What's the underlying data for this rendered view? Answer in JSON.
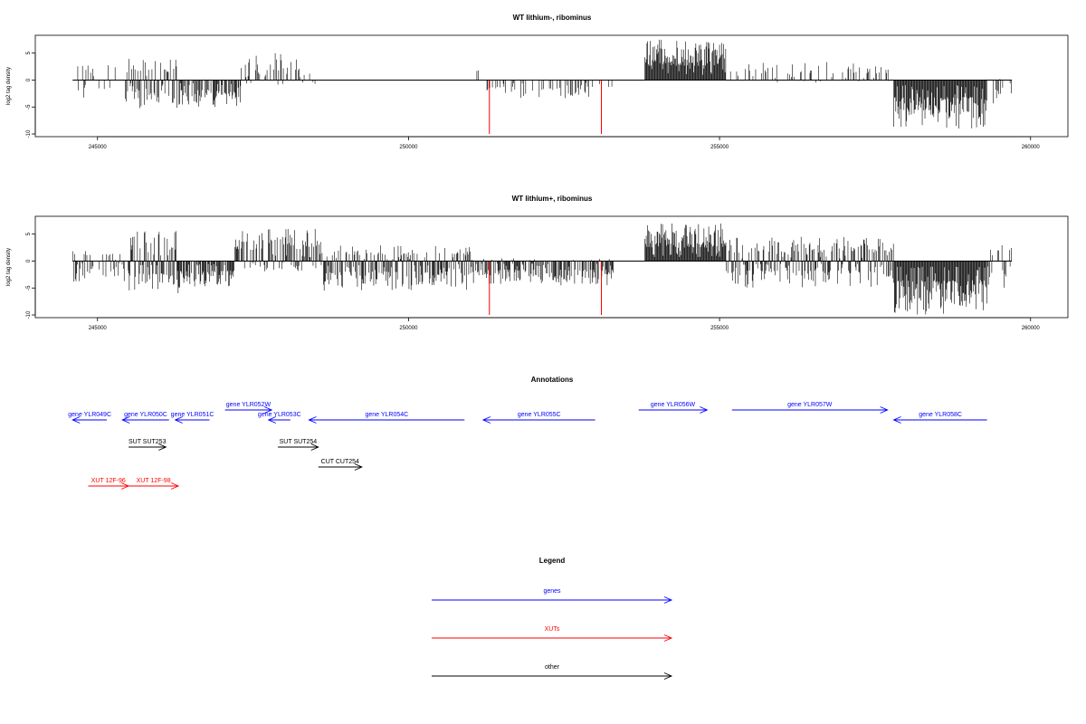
{
  "colors": {
    "genes": "#0000ff",
    "xuts": "#ff0000",
    "other": "#000000",
    "highlight": "#ff0000",
    "bars": "#000000"
  },
  "chart_data": [
    {
      "type": "bar",
      "title": "WT lithium-, ribominus",
      "ylabel": "log2 tag density",
      "xlim": [
        244000,
        260600
      ],
      "ylim": [
        -10.5,
        8.3
      ],
      "x_ticks": [
        245000,
        250000,
        255000,
        260000
      ],
      "x_tick_labels": [
        "245000",
        "250000",
        "255000",
        "260000"
      ],
      "y_ticks": [
        5,
        0,
        -5,
        -10
      ],
      "y_tick_labels": [
        "5",
        "0",
        "-5",
        "-10"
      ],
      "grid": false,
      "baseline": {
        "x": [
          244600,
          259700
        ],
        "y": 0
      },
      "highlight_bars": [
        {
          "x": 251300,
          "y": -10
        },
        {
          "x": 253100,
          "y": -10
        }
      ],
      "regions": [
        {
          "start": 244650,
          "end": 245300,
          "min": -4,
          "max": 3.5,
          "density": 0.22
        },
        {
          "start": 245450,
          "end": 246300,
          "min": -5.5,
          "max": 4,
          "density": 0.7
        },
        {
          "start": 246300,
          "end": 247300,
          "min": -5,
          "max": 0,
          "density": 0.7
        },
        {
          "start": 247300,
          "end": 248300,
          "min": -1.5,
          "max": 5,
          "density": 0.35
        },
        {
          "start": 248300,
          "end": 248500,
          "min": -1,
          "max": 2,
          "density": 0.2
        },
        {
          "start": 251000,
          "end": 251200,
          "min": 0,
          "max": 2,
          "density": 0.05
        },
        {
          "start": 251250,
          "end": 253300,
          "min": -3.5,
          "max": 0,
          "density": 0.3
        },
        {
          "start": 253800,
          "end": 255100,
          "min": 0,
          "max": 7.5,
          "density": 1.0
        },
        {
          "start": 255100,
          "end": 257800,
          "min": -0.5,
          "max": 3.5,
          "density": 0.25
        },
        {
          "start": 257800,
          "end": 259300,
          "min": -9,
          "max": 0,
          "density": 1.0
        },
        {
          "start": 259300,
          "end": 259700,
          "min": -5,
          "max": 1,
          "density": 0.3
        }
      ]
    },
    {
      "type": "bar",
      "title": "WT lithium+, ribominus",
      "ylabel": "log2 tag density",
      "xlim": [
        244000,
        260600
      ],
      "ylim": [
        -10.5,
        8.3
      ],
      "x_ticks": [
        245000,
        250000,
        255000,
        260000
      ],
      "x_tick_labels": [
        "245000",
        "250000",
        "255000",
        "260000"
      ],
      "y_ticks": [
        5,
        0,
        -5,
        -10
      ],
      "y_tick_labels": [
        "5",
        "0",
        "-5",
        "-10"
      ],
      "grid": false,
      "baseline": {
        "x": [
          244600,
          259700
        ],
        "y": 0
      },
      "highlight_bars": [
        {
          "x": 251300,
          "y": -10
        },
        {
          "x": 253100,
          "y": -10
        }
      ],
      "regions": [
        {
          "start": 244600,
          "end": 245500,
          "min": -4,
          "max": 2,
          "density": 0.55
        },
        {
          "start": 245500,
          "end": 246300,
          "min": -6.5,
          "max": 6,
          "density": 0.9
        },
        {
          "start": 246300,
          "end": 247200,
          "min": -5,
          "max": 0,
          "density": 0.8
        },
        {
          "start": 247200,
          "end": 248600,
          "min": -2,
          "max": 6,
          "density": 0.7
        },
        {
          "start": 248600,
          "end": 251000,
          "min": -5.5,
          "max": 3,
          "density": 0.8
        },
        {
          "start": 251000,
          "end": 253300,
          "min": -4.5,
          "max": 0.5,
          "density": 0.7
        },
        {
          "start": 253800,
          "end": 255100,
          "min": 0,
          "max": 7,
          "density": 1.0
        },
        {
          "start": 255100,
          "end": 257800,
          "min": -5,
          "max": 4.5,
          "density": 0.8
        },
        {
          "start": 257800,
          "end": 259300,
          "min": -10,
          "max": 0,
          "density": 1.0
        },
        {
          "start": 259300,
          "end": 259700,
          "min": -6,
          "max": 3,
          "density": 0.5
        }
      ]
    },
    {
      "type": "table",
      "title": "Annotations",
      "features": [
        {
          "label": "gene YLR049C",
          "category": "genes",
          "strand": "-",
          "start": 244600,
          "end": 245150
        },
        {
          "label": "gene YLR050C",
          "category": "genes",
          "strand": "-",
          "start": 245400,
          "end": 246150
        },
        {
          "label": "gene YLR051C",
          "category": "genes",
          "strand": "-",
          "start": 246250,
          "end": 246800
        },
        {
          "label": "gene YLR052W",
          "category": "genes",
          "strand": "+",
          "start": 247050,
          "end": 247800
        },
        {
          "label": "gene YLR053C",
          "category": "genes",
          "strand": "-",
          "start": 247750,
          "end": 248100
        },
        {
          "label": "gene YLR054C",
          "category": "genes",
          "strand": "-",
          "start": 248400,
          "end": 250900
        },
        {
          "label": "gene YLR055C",
          "category": "genes",
          "strand": "-",
          "start": 251200,
          "end": 253000
        },
        {
          "label": "gene YLR056W",
          "category": "genes",
          "strand": "+",
          "start": 253700,
          "end": 254800
        },
        {
          "label": "gene YLR057W",
          "category": "genes",
          "strand": "+",
          "start": 255200,
          "end": 257700
        },
        {
          "label": "gene YLR058C",
          "category": "genes",
          "strand": "-",
          "start": 257800,
          "end": 259300
        },
        {
          "label": "SUT SUT253",
          "category": "other",
          "strand": "+",
          "start": 245500,
          "end": 246100
        },
        {
          "label": "SUT SUT254",
          "category": "other",
          "strand": "+",
          "start": 247900,
          "end": 248550
        },
        {
          "label": "CUT CUT254",
          "category": "other",
          "strand": "+",
          "start": 248550,
          "end": 249250
        },
        {
          "label": "XUT 12F-96",
          "category": "xuts",
          "strand": "+",
          "start": 244850,
          "end": 245500
        },
        {
          "label": "XUT 12F-98",
          "category": "xuts",
          "strand": "+",
          "start": 245500,
          "end": 246300
        }
      ]
    },
    {
      "type": "table",
      "title": "Legend",
      "entries": [
        {
          "label": "genes",
          "category": "genes"
        },
        {
          "label": "XUTs",
          "category": "xuts"
        },
        {
          "label": "other",
          "category": "other"
        }
      ]
    }
  ]
}
